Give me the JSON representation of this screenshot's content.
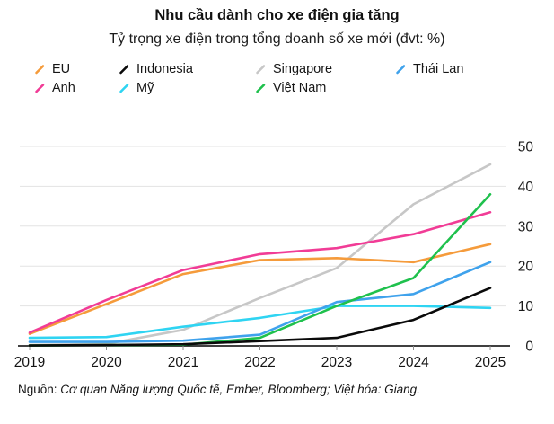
{
  "header": {
    "title": "Nhu cầu dành cho xe điện gia tăng",
    "subtitle": "Tỷ trọng xe điện trong tổng doanh số xe mới (đvt: %)"
  },
  "source": {
    "prefix": "Nguồn:",
    "text": " Cơ quan Năng lượng Quốc tế, Ember, Bloomberg; Việt hóa: Giang."
  },
  "chart_data": {
    "type": "line",
    "title": "Nhu cầu dành cho xe điện gia tăng",
    "subtitle": "Tỷ trọng xe điện trong tổng doanh số xe mới (đvt: %)",
    "x": [
      2019,
      2020,
      2021,
      2022,
      2023,
      2024,
      2025
    ],
    "series": [
      {
        "name": "EU",
        "color": "#F59B3B",
        "values": [
          3,
          10.5,
          18,
          21.5,
          22,
          21,
          25.5
        ]
      },
      {
        "name": "Indonesia",
        "color": "#0A0A0A",
        "values": [
          0.1,
          0.2,
          0.4,
          1.2,
          2,
          6.5,
          14.5
        ]
      },
      {
        "name": "Singapore",
        "color": "#C7C7C7",
        "values": [
          0.2,
          0.5,
          4,
          12,
          19.5,
          35.5,
          45.5
        ]
      },
      {
        "name": "Thái Lan",
        "color": "#3FA2EC",
        "values": [
          1,
          1,
          1.3,
          2.8,
          11,
          13,
          21
        ]
      },
      {
        "name": "Anh",
        "color": "#F13C96",
        "values": [
          3.3,
          11.5,
          19,
          23,
          24.5,
          28,
          33.5
        ]
      },
      {
        "name": "Mỹ",
        "color": "#2FD4F2",
        "values": [
          2,
          2.2,
          4.8,
          7,
          10,
          10,
          9.5
        ]
      },
      {
        "name": "Việt Nam",
        "color": "#1FC14D",
        "values": [
          0.1,
          0.2,
          0.3,
          2,
          10,
          17,
          38
        ]
      }
    ],
    "draw_order": [
      "Singapore",
      "Mỹ",
      "EU",
      "Anh",
      "Thái Lan",
      "Việt Nam",
      "Indonesia"
    ],
    "ylim": [
      0,
      50
    ],
    "yticks": [
      0,
      10,
      20,
      30,
      40,
      50
    ],
    "grid": true,
    "y_axis_side": "right",
    "legend_position": "top"
  }
}
